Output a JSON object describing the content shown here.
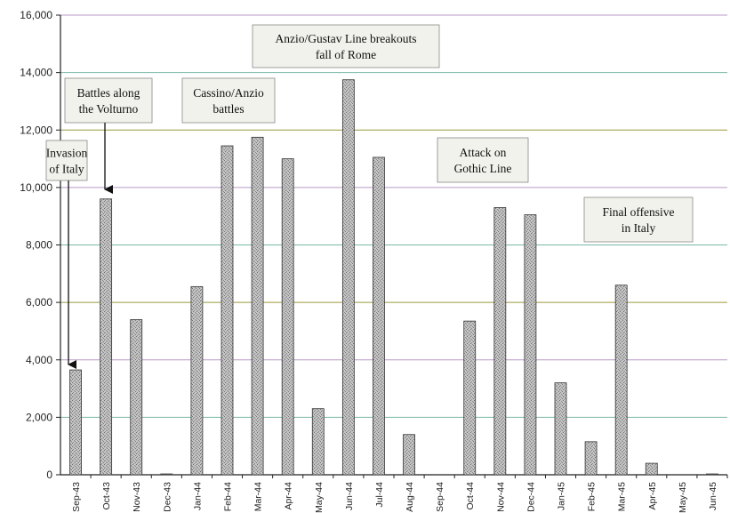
{
  "chart_data": {
    "type": "bar",
    "title": "",
    "xlabel": "",
    "ylabel": "",
    "ylim": [
      0,
      16000
    ],
    "yticks": [
      0,
      2000,
      4000,
      6000,
      8000,
      10000,
      12000,
      14000,
      16000
    ],
    "ytick_labels": [
      "0",
      "2,000",
      "4,000",
      "6,000",
      "8,000",
      "10,000",
      "12,000",
      "14,000",
      "16,000"
    ],
    "grid": true,
    "categories": [
      "Sep-43",
      "Oct-43",
      "Nov-43",
      "Dec-43",
      "Jan-44",
      "Feb-44",
      "Mar-44",
      "Apr-44",
      "May-44",
      "Jun-44",
      "Jul-44",
      "Aug-44",
      "Sep-44",
      "Oct-44",
      "Nov-44",
      "Dec-44",
      "Jan-45",
      "Feb-45",
      "Mar-45",
      "Apr-45",
      "May-45",
      "Jun-45"
    ],
    "values": [
      3650,
      9600,
      5400,
      30,
      6550,
      11450,
      11750,
      11000,
      2300,
      13750,
      11050,
      1400,
      0,
      5350,
      9300,
      9050,
      3200,
      1150,
      6600,
      400,
      0,
      30
    ],
    "bar_color": "#b8b8b8",
    "gridline_colors": [
      "#9a9a3a",
      "#7ab8a8",
      "#b89ac8"
    ],
    "annotations": [
      {
        "lines": [
          "Invasion",
          "of Italy"
        ],
        "arrow_to": "Sep-43"
      },
      {
        "lines": [
          "Battles along",
          "the Volturno"
        ],
        "arrow_to": "Oct-43"
      },
      {
        "lines": [
          "Cassino/Anzio",
          "battles"
        ]
      },
      {
        "lines": [
          "Anzio/Gustav Line breakouts",
          "fall of Rome"
        ]
      },
      {
        "lines": [
          "Attack on",
          "Gothic Line"
        ]
      },
      {
        "lines": [
          "Final offensive",
          "in Italy"
        ]
      }
    ]
  }
}
